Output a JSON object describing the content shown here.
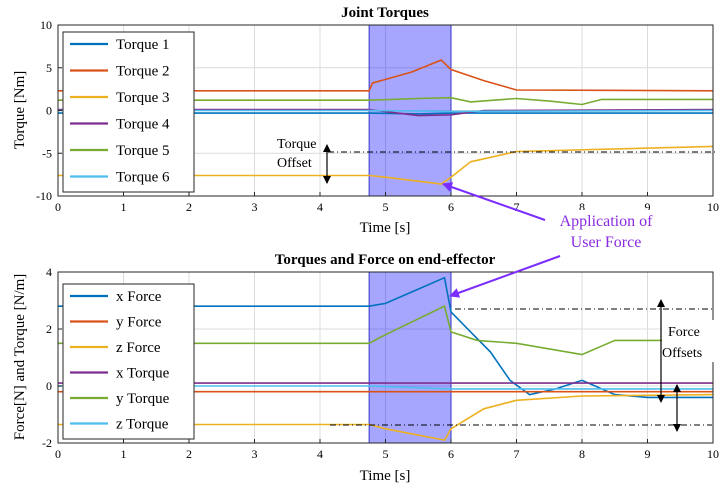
{
  "figure": {
    "arrow_color": "#7b2cff",
    "annotation": {
      "application_line1": "Application of",
      "application_line2": "User Force",
      "torque_offset_line1": "Torque",
      "torque_offset_line2": "Offset",
      "force_offsets_line1": "Force",
      "force_offsets_line2": "Offsets"
    },
    "highlight": {
      "x_start": 4.75,
      "x_end": 6.0,
      "color": "#0000ff",
      "opacity": 0.35
    }
  },
  "chart_data": [
    {
      "type": "line",
      "title": "Joint Torques",
      "xlabel": "Time [s]",
      "ylabel": "Torque [Nm]",
      "xlim": [
        0,
        10
      ],
      "ylim": [
        -10,
        10
      ],
      "xticks": [
        0,
        1,
        2,
        3,
        4,
        5,
        6,
        7,
        8,
        9,
        10
      ],
      "yticks": [
        -10,
        -5,
        0,
        5,
        10
      ],
      "grid": true,
      "legend_position": "top-left",
      "series": [
        {
          "name": "Torque 1",
          "color": "#0072bd",
          "x": [
            0,
            4.75,
            5.5,
            6.0,
            6.5,
            10
          ],
          "y": [
            -0.3,
            -0.3,
            -0.4,
            -0.3,
            -0.3,
            -0.3
          ]
        },
        {
          "name": "Torque 2",
          "color": "#d95319",
          "x": [
            0,
            4.75,
            4.8,
            5.4,
            5.85,
            6.0,
            6.5,
            7.0,
            10
          ],
          "y": [
            2.3,
            2.3,
            3.2,
            4.5,
            5.9,
            4.8,
            3.5,
            2.4,
            2.3
          ]
        },
        {
          "name": "Torque 3",
          "color": "#edb120",
          "x": [
            0,
            4.75,
            5.0,
            5.85,
            6.0,
            6.3,
            7.0,
            10
          ],
          "y": [
            -7.6,
            -7.6,
            -7.8,
            -8.6,
            -7.8,
            -6.0,
            -4.8,
            -4.2
          ]
        },
        {
          "name": "Torque 4",
          "color": "#7e2f8e",
          "x": [
            0,
            4.75,
            5.5,
            6.0,
            6.5,
            10
          ],
          "y": [
            0.1,
            0.1,
            -0.6,
            -0.5,
            0.0,
            0.1
          ]
        },
        {
          "name": "Torque 5",
          "color": "#77ac30",
          "x": [
            0,
            4.75,
            5.5,
            6.0,
            6.3,
            7.0,
            7.5,
            8.0,
            8.3,
            10
          ],
          "y": [
            1.2,
            1.2,
            1.4,
            1.5,
            1.0,
            1.4,
            1.1,
            0.7,
            1.3,
            1.3
          ]
        },
        {
          "name": "Torque 6",
          "color": "#4dbeee",
          "x": [
            0,
            4.75,
            6.0,
            10
          ],
          "y": [
            0.0,
            0.0,
            -0.1,
            0.0
          ]
        }
      ],
      "display_map": [
        {
          "legend": "Torque 1",
          "series_index": 0
        },
        {
          "legend": "Torque 2",
          "series_index": 1
        },
        {
          "legend": "Torque 3",
          "series_index": 2
        },
        {
          "legend": "Torque 4",
          "series_index": 3
        },
        {
          "legend": "Torque 5",
          "series_index": 4
        },
        {
          "legend": "Torque 6",
          "series_index": 5
        }
      ]
    },
    {
      "type": "line",
      "title": "Torques and Force on end-effector",
      "xlabel": "Time [s]",
      "ylabel": "Force[N] and Torque [N/m]",
      "xlim": [
        0,
        10
      ],
      "ylim": [
        -2,
        4
      ],
      "xticks": [
        0,
        1,
        2,
        3,
        4,
        5,
        6,
        7,
        8,
        9,
        10
      ],
      "yticks": [
        -2,
        0,
        2,
        4
      ],
      "grid": true,
      "legend_position": "top-left",
      "series": [
        {
          "name": "x Force",
          "color": "#0072bd",
          "x": [
            0,
            4.75,
            5.0,
            5.5,
            5.9,
            6.0,
            6.3,
            6.6,
            6.9,
            7.2,
            7.6,
            8.0,
            8.5,
            9.0,
            10
          ],
          "y": [
            2.8,
            2.8,
            2.9,
            3.4,
            3.8,
            2.6,
            1.9,
            1.2,
            0.2,
            -0.3,
            -0.1,
            0.2,
            -0.3,
            -0.4,
            -0.4
          ]
        },
        {
          "name": "y Force",
          "color": "#d95319",
          "x": [
            0,
            4.75,
            6.0,
            10
          ],
          "y": [
            -0.2,
            -0.2,
            -0.2,
            -0.2
          ]
        },
        {
          "name": "z Force",
          "color": "#edb120",
          "x": [
            0,
            4.75,
            5.0,
            5.9,
            6.0,
            6.5,
            7.0,
            8.0,
            10
          ],
          "y": [
            -1.35,
            -1.35,
            -1.5,
            -1.9,
            -1.5,
            -0.8,
            -0.5,
            -0.35,
            -0.3
          ]
        },
        {
          "name": "x Torque",
          "color": "#7e2f8e",
          "x": [
            0,
            4.75,
            6.0,
            10
          ],
          "y": [
            0.1,
            0.1,
            0.1,
            0.1
          ]
        },
        {
          "name": "y Torque",
          "color": "#77ac30",
          "x": [
            0,
            4.75,
            5.0,
            5.9,
            6.0,
            6.4,
            7.0,
            8.0,
            8.5,
            10
          ],
          "y": [
            1.5,
            1.5,
            1.8,
            2.8,
            1.9,
            1.6,
            1.5,
            1.1,
            1.6,
            1.6
          ]
        },
        {
          "name": "z Torque",
          "color": "#4dbeee",
          "x": [
            0,
            4.75,
            6.0,
            10
          ],
          "y": [
            0.0,
            0.0,
            -0.1,
            -0.1
          ]
        }
      ]
    }
  ]
}
